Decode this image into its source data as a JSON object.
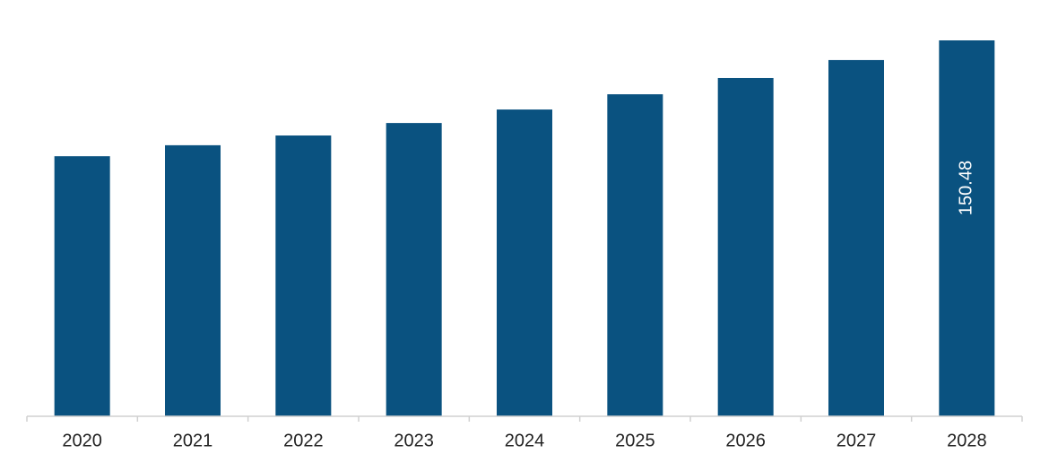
{
  "chart_data": {
    "type": "bar",
    "categories": [
      "2020",
      "2021",
      "2022",
      "2023",
      "2024",
      "2025",
      "2026",
      "2027",
      "2028"
    ],
    "values": [
      104.1,
      108.5,
      112.4,
      117.4,
      122.8,
      128.9,
      135.4,
      142.6,
      150.48
    ],
    "value_labels": [
      null,
      null,
      null,
      null,
      null,
      null,
      null,
      null,
      "150.48"
    ],
    "color": "#0a5280"
  }
}
